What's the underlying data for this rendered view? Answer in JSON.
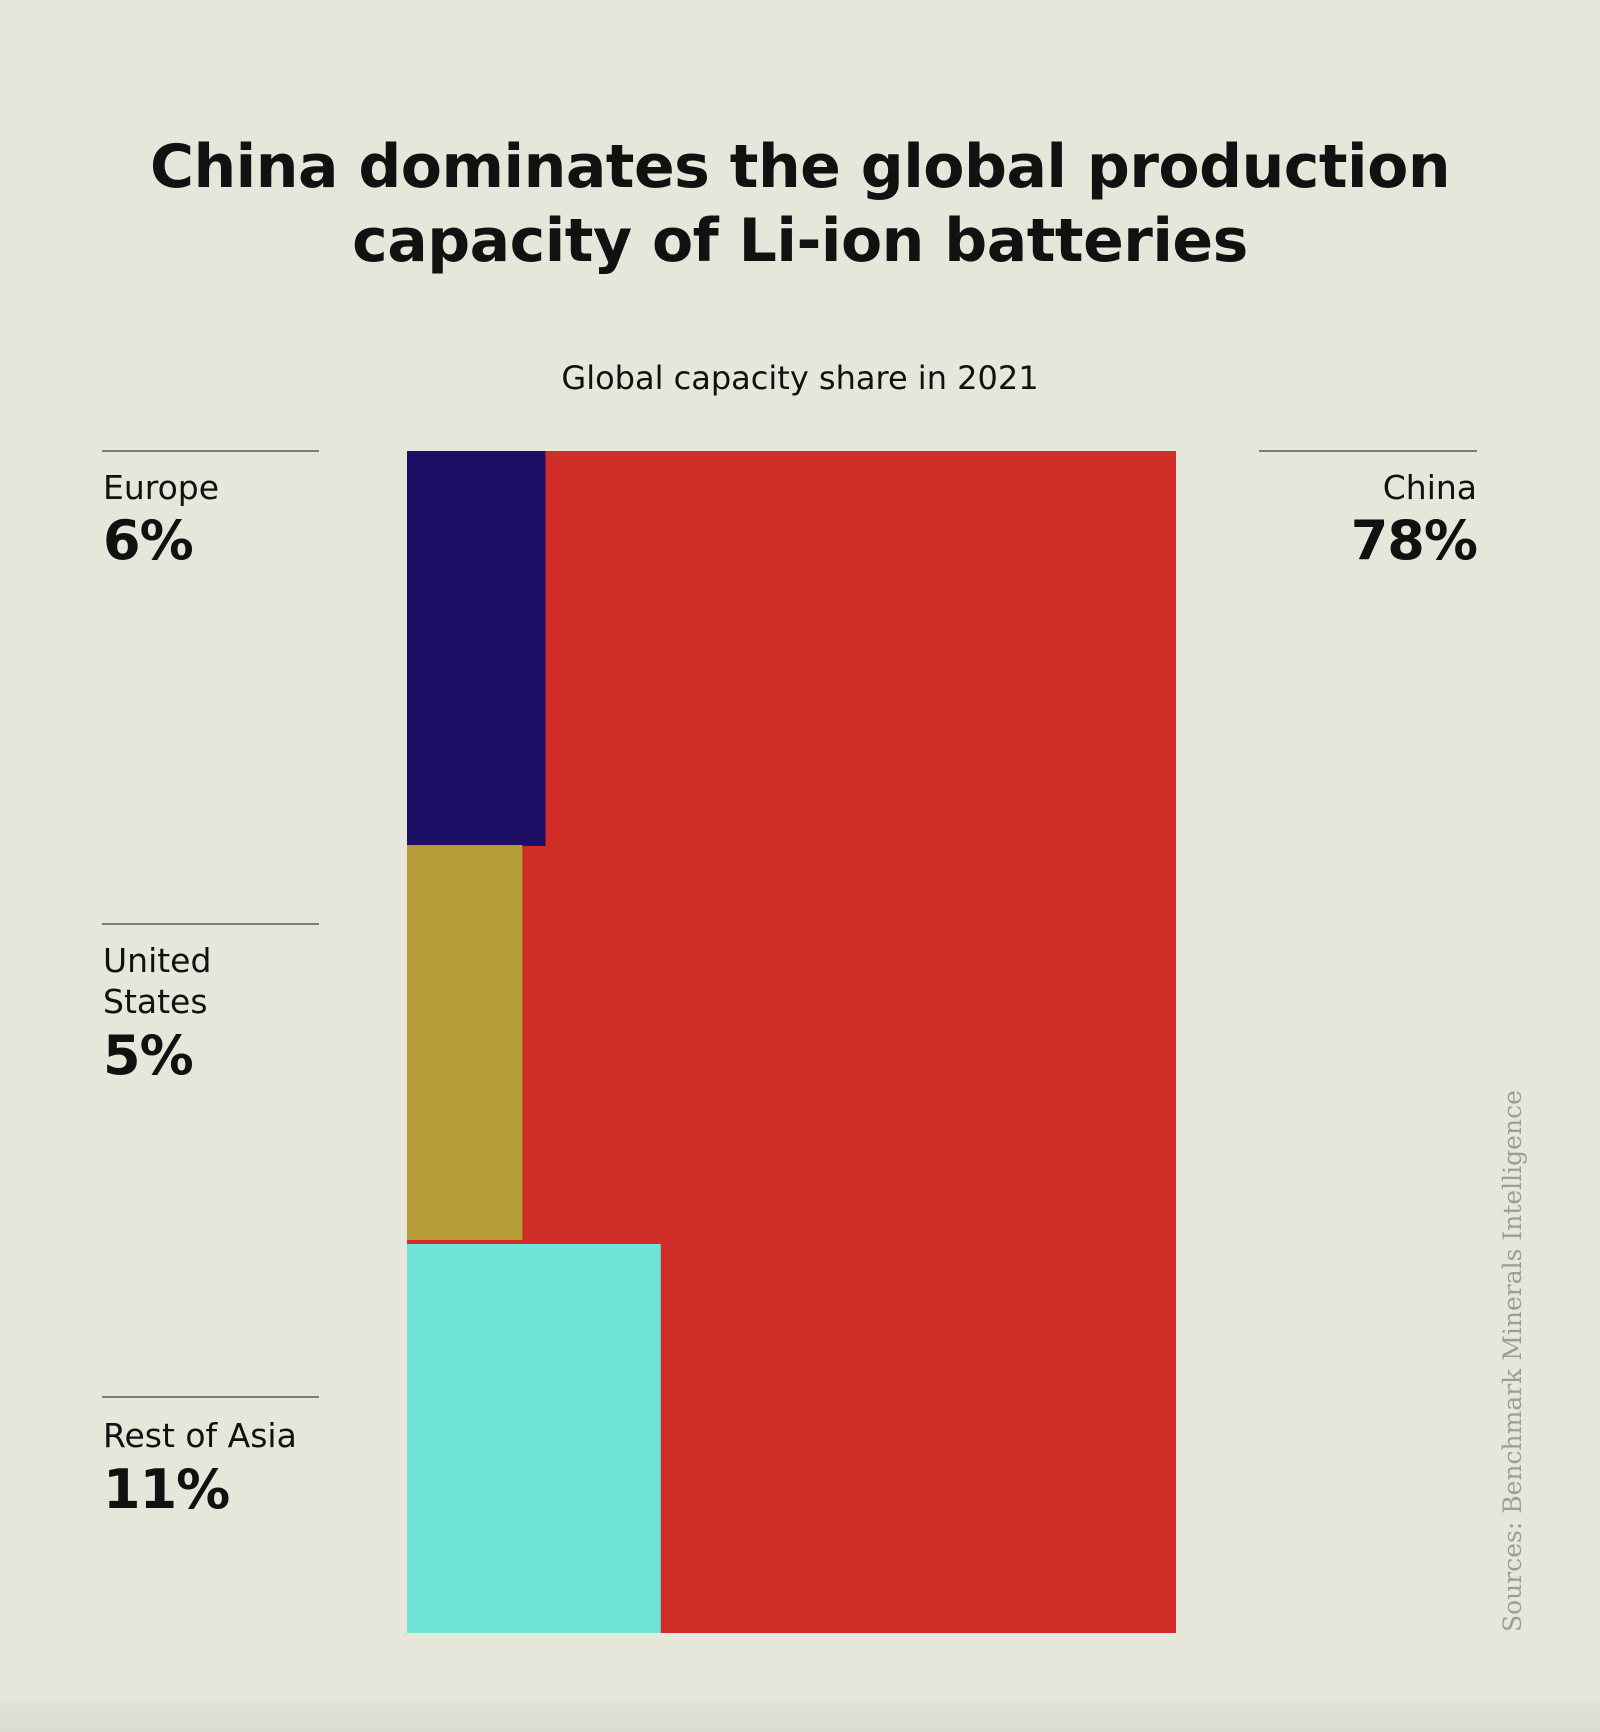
{
  "title_lines": [
    "China dominates the global production",
    "capacity of Li-ion batteries"
  ],
  "subtitle": "Global capacity share in 2021",
  "source": "Sources: Benchmark Minerals Intelligence",
  "colors": {
    "background": "#e6e6da",
    "china": "#d12d27",
    "europe": "#1e0f66",
    "united_states": "#b59c35",
    "rest_of_asia": "#6fe3d5"
  },
  "labels": {
    "europe": {
      "name": "Europe",
      "value": "6%"
    },
    "united_states": {
      "name_lines": [
        "United",
        "States"
      ],
      "value": "5%"
    },
    "rest_of_asia": {
      "name": "Rest of Asia",
      "value": "11%"
    },
    "china": {
      "name": "China",
      "value": "78%"
    }
  },
  "chart_data": {
    "type": "treemap",
    "title": "China dominates the global production capacity of Li-ion batteries",
    "subtitle": "Global capacity share in 2021",
    "unit": "%",
    "categories": [
      "Europe",
      "United States",
      "Rest of Asia",
      "China"
    ],
    "values": [
      6,
      5,
      11,
      78
    ],
    "colors": [
      "#1e0f66",
      "#b59c35",
      "#6fe3d5",
      "#d12d27"
    ]
  }
}
